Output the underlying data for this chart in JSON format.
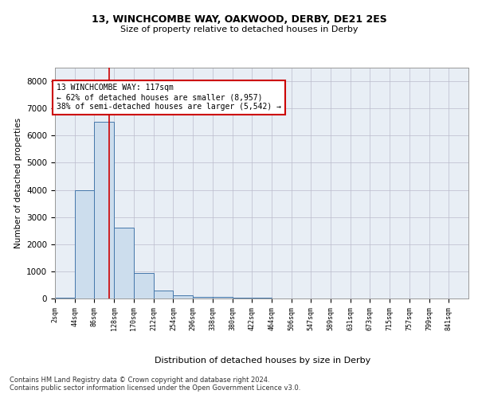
{
  "title1": "13, WINCHCOMBE WAY, OAKWOOD, DERBY, DE21 2ES",
  "title2": "Size of property relative to detached houses in Derby",
  "xlabel": "Distribution of detached houses by size in Derby",
  "ylabel": "Number of detached properties",
  "bin_edges": [
    2,
    44,
    86,
    128,
    170,
    212,
    254,
    296,
    338,
    380,
    422,
    464,
    506,
    547,
    589,
    631,
    673,
    715,
    757,
    799,
    841
  ],
  "bar_heights": [
    25,
    4000,
    6520,
    2600,
    950,
    300,
    120,
    60,
    55,
    30,
    25,
    0,
    0,
    0,
    0,
    0,
    0,
    0,
    0,
    0
  ],
  "bar_color": "#ccdded",
  "bar_edge_color": "#4477aa",
  "vline_x": 117,
  "vline_color": "#cc0000",
  "annotation_text": "13 WINCHCOMBE WAY: 117sqm\n← 62% of detached houses are smaller (8,957)\n38% of semi-detached houses are larger (5,542) →",
  "annotation_box_color": "#cc0000",
  "ylim": [
    0,
    8500
  ],
  "yticks": [
    0,
    1000,
    2000,
    3000,
    4000,
    5000,
    6000,
    7000,
    8000
  ],
  "xtick_labels": [
    "2sqm",
    "44sqm",
    "86sqm",
    "128sqm",
    "170sqm",
    "212sqm",
    "254sqm",
    "296sqm",
    "338sqm",
    "380sqm",
    "422sqm",
    "464sqm",
    "506sqm",
    "547sqm",
    "589sqm",
    "631sqm",
    "673sqm",
    "715sqm",
    "757sqm",
    "799sqm",
    "841sqm"
  ],
  "footer_text": "Contains HM Land Registry data © Crown copyright and database right 2024.\nContains public sector information licensed under the Open Government Licence v3.0.",
  "background_color": "#e8eef5",
  "grid_color": "#bbbbcc"
}
